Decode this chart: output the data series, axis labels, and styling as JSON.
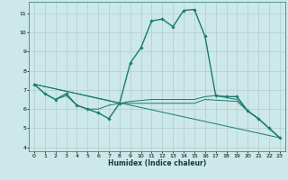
{
  "xlabel": "Humidex (Indice chaleur)",
  "xlim": [
    -0.5,
    23.5
  ],
  "ylim": [
    3.8,
    11.6
  ],
  "yticks": [
    4,
    5,
    6,
    7,
    8,
    9,
    10,
    11
  ],
  "xticks": [
    0,
    1,
    2,
    3,
    4,
    5,
    6,
    7,
    8,
    9,
    10,
    11,
    12,
    13,
    14,
    15,
    16,
    17,
    18,
    19,
    20,
    21,
    22,
    23
  ],
  "bg_color": "#cce8e8",
  "grid_color": "#b0cccc",
  "line_color": "#1a7a6e",
  "lines": [
    {
      "x": [
        0,
        1,
        2,
        3,
        4,
        5,
        6,
        7,
        8,
        9,
        10,
        11,
        12,
        13,
        14,
        15,
        16,
        17,
        18,
        19,
        20,
        21,
        22,
        23
      ],
      "y": [
        7.3,
        6.8,
        6.5,
        6.8,
        6.2,
        6.0,
        5.8,
        5.5,
        6.3,
        8.4,
        9.2,
        10.6,
        10.7,
        10.3,
        11.15,
        11.2,
        9.8,
        6.7,
        6.65,
        6.65,
        5.9,
        5.5,
        5.0,
        4.5
      ],
      "marker": "D",
      "markersize": 1.8,
      "linewidth": 1.0
    },
    {
      "x": [
        0,
        1,
        2,
        3,
        4,
        5,
        6,
        7,
        8,
        9,
        10,
        11,
        12,
        13,
        14,
        15,
        16,
        17,
        18,
        19,
        20,
        21,
        22,
        23
      ],
      "y": [
        7.3,
        6.8,
        6.5,
        6.7,
        6.2,
        6.0,
        6.0,
        6.2,
        6.3,
        6.4,
        6.45,
        6.5,
        6.5,
        6.5,
        6.5,
        6.5,
        6.65,
        6.7,
        6.6,
        6.5,
        5.9,
        5.5,
        5.0,
        4.5
      ],
      "marker": null,
      "markersize": 0,
      "linewidth": 0.7
    },
    {
      "x": [
        0,
        8,
        15,
        16,
        19,
        20,
        21,
        22,
        23
      ],
      "y": [
        7.3,
        6.3,
        6.3,
        6.5,
        6.4,
        5.9,
        5.5,
        5.0,
        4.5
      ],
      "marker": null,
      "markersize": 0,
      "linewidth": 0.7
    },
    {
      "x": [
        0,
        23
      ],
      "y": [
        7.3,
        4.5
      ],
      "marker": null,
      "markersize": 0,
      "linewidth": 0.7
    }
  ]
}
